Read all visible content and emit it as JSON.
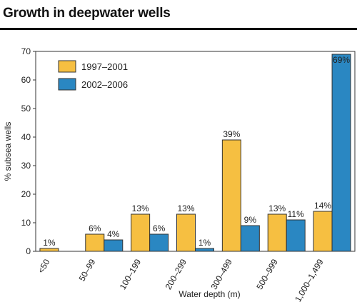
{
  "title": "Growth in deepwater wells",
  "chart_data": {
    "type": "bar",
    "title": "Growth in deepwater wells",
    "xlabel": "Water depth (m)",
    "ylabel": "% subsea wells",
    "ylim": [
      0,
      70
    ],
    "yticks": [
      0,
      10,
      20,
      30,
      40,
      50,
      60,
      70
    ],
    "categories": [
      "<50",
      "50–99",
      "100–199",
      "200–299",
      "300–499",
      "500–999",
      "1,000–1,499"
    ],
    "series": [
      {
        "name": "1997–2001",
        "color": "#f6bf41",
        "values": [
          1,
          6,
          13,
          13,
          39,
          13,
          14
        ],
        "labels": [
          "1%",
          "6%",
          "13%",
          "13%",
          "39%",
          "13%",
          "14%"
        ]
      },
      {
        "name": "2002–2006",
        "color": "#2a87c2",
        "values": [
          null,
          4,
          6,
          1,
          9,
          11,
          69
        ],
        "labels": [
          "",
          "4%",
          "6%",
          "1%",
          "9%",
          "11%",
          "69%"
        ]
      }
    ],
    "legend_position": "top-left",
    "grid": false
  }
}
